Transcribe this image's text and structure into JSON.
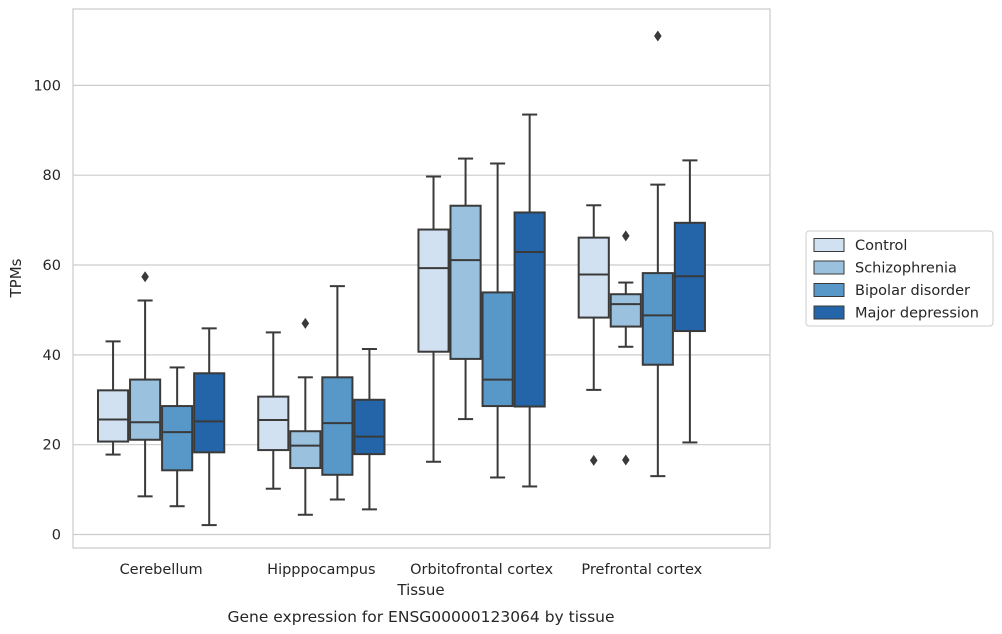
{
  "chart_data": {
    "type": "boxplot",
    "title": "Gene expression for ENSG00000123064 by tissue",
    "xlabel": "Tissue",
    "ylabel": "TPMs",
    "ylim": [
      -3,
      117
    ],
    "yticks": [
      0,
      20,
      40,
      60,
      80,
      100
    ],
    "grid": "horizontal",
    "legend_position": "right",
    "categories": [
      "Cerebellum",
      "Hipppocampus",
      "Orbitofrontal cortex",
      "Prefrontal cortex"
    ],
    "series": [
      {
        "name": "Control",
        "color": "#d1e1f2",
        "boxes": [
          {
            "whislo": 17.8,
            "q1": 20.7,
            "med": 25.6,
            "q3": 32.1,
            "whishi": 43.0,
            "fliers": []
          },
          {
            "whislo": 10.2,
            "q1": 18.8,
            "med": 25.5,
            "q3": 30.7,
            "whishi": 45.0,
            "fliers": []
          },
          {
            "whislo": 16.2,
            "q1": 40.7,
            "med": 59.3,
            "q3": 67.9,
            "whishi": 79.7,
            "fliers": []
          },
          {
            "whislo": 32.2,
            "q1": 48.3,
            "med": 57.9,
            "q3": 66.1,
            "whishi": 73.3,
            "fliers": [
              16.5
            ]
          }
        ]
      },
      {
        "name": "Schizophrenia",
        "color": "#9ac2de",
        "boxes": [
          {
            "whislo": 8.5,
            "q1": 21.1,
            "med": 25.0,
            "q3": 34.5,
            "whishi": 52.1,
            "fliers": [
              57.4
            ]
          },
          {
            "whislo": 4.4,
            "q1": 14.8,
            "med": 19.8,
            "q3": 23.0,
            "whishi": 35.0,
            "fliers": [
              47.0
            ]
          },
          {
            "whislo": 25.7,
            "q1": 39.1,
            "med": 61.1,
            "q3": 73.2,
            "whishi": 83.7,
            "fliers": []
          },
          {
            "whislo": 41.8,
            "q1": 46.3,
            "med": 51.3,
            "q3": 53.5,
            "whishi": 56.1,
            "fliers": [
              16.6,
              66.5
            ]
          }
        ]
      },
      {
        "name": "Bipolar disorder",
        "color": "#5798c9",
        "boxes": [
          {
            "whislo": 6.3,
            "q1": 14.3,
            "med": 22.8,
            "q3": 28.6,
            "whishi": 37.2,
            "fliers": []
          },
          {
            "whislo": 7.8,
            "q1": 13.3,
            "med": 24.8,
            "q3": 35.0,
            "whishi": 55.3,
            "fliers": []
          },
          {
            "whislo": 12.7,
            "q1": 28.6,
            "med": 34.5,
            "q3": 53.9,
            "whishi": 82.6,
            "fliers": []
          },
          {
            "whislo": 13.0,
            "q1": 37.8,
            "med": 48.8,
            "q3": 58.2,
            "whishi": 77.9,
            "fliers": [
              111.0
            ]
          }
        ]
      },
      {
        "name": "Major depression",
        "color": "#2365a8",
        "boxes": [
          {
            "whislo": 2.1,
            "q1": 18.3,
            "med": 25.2,
            "q3": 35.9,
            "whishi": 45.9,
            "fliers": []
          },
          {
            "whislo": 5.6,
            "q1": 17.9,
            "med": 21.8,
            "q3": 30.0,
            "whishi": 41.3,
            "fliers": []
          },
          {
            "whislo": 10.7,
            "q1": 28.5,
            "med": 62.9,
            "q3": 71.7,
            "whishi": 93.5,
            "fliers": []
          },
          {
            "whislo": 20.5,
            "q1": 45.3,
            "med": 57.5,
            "q3": 69.4,
            "whishi": 83.3,
            "fliers": []
          }
        ]
      }
    ]
  }
}
